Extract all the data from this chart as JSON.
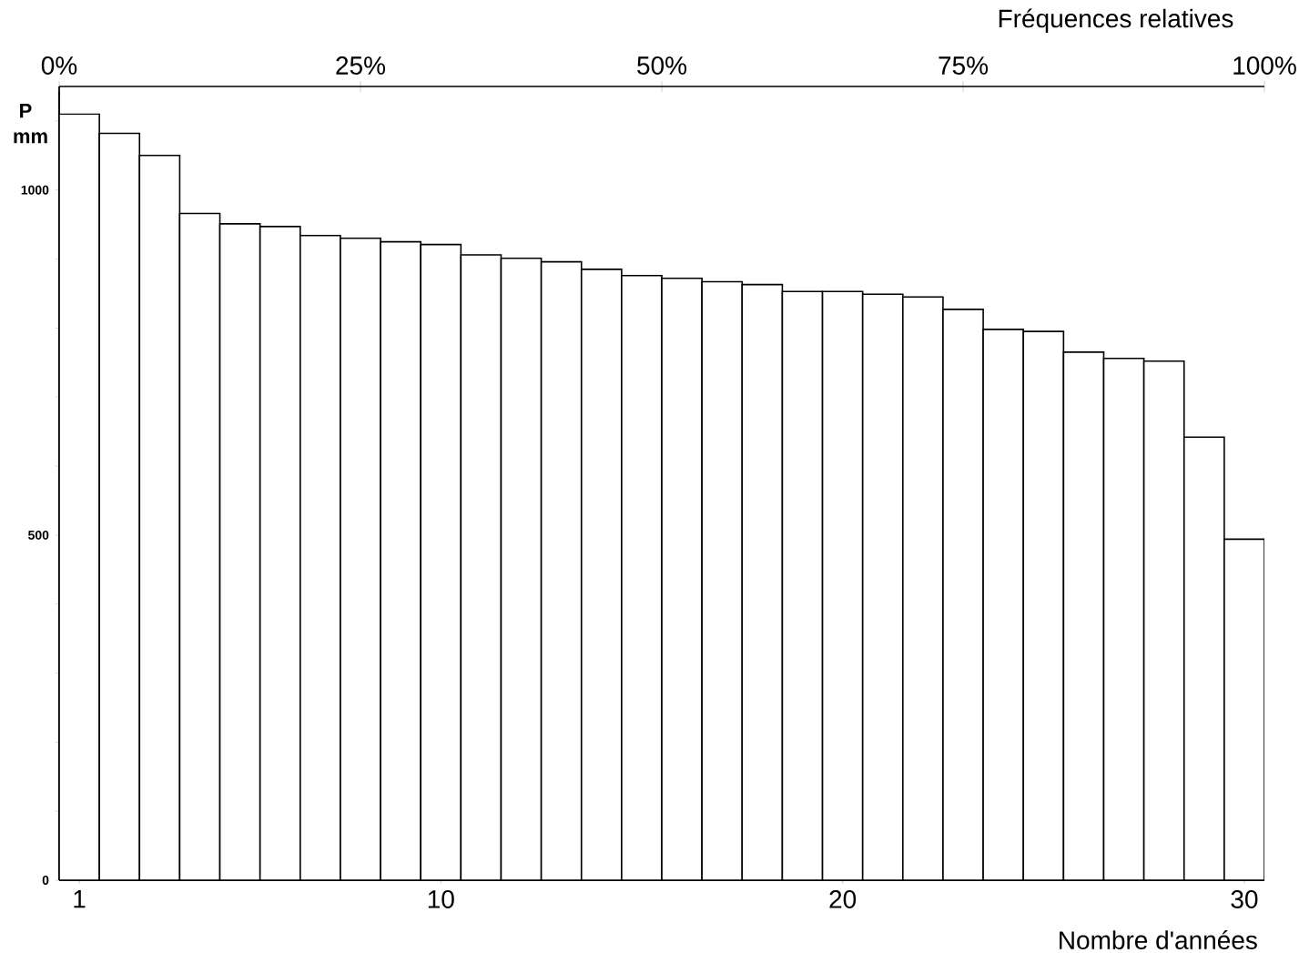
{
  "chart_data": {
    "type": "bar",
    "xlabel": "Nombre d'années",
    "ylabel": "P mm",
    "x2label": "Fréquences relatives",
    "color": "#ffffff",
    "categories": [
      "1",
      null,
      null,
      null,
      null,
      null,
      null,
      null,
      null,
      "10",
      null,
      null,
      null,
      null,
      null,
      null,
      null,
      null,
      null,
      "20",
      null,
      null,
      null,
      null,
      null,
      null,
      null,
      null,
      null,
      "30"
    ],
    "values": [
      1110,
      1082,
      1050,
      966,
      951,
      947,
      934,
      930,
      925,
      921,
      906,
      901,
      896,
      885,
      876,
      872,
      867,
      863,
      853,
      853,
      849,
      845,
      827,
      798,
      795,
      765,
      756,
      752,
      642,
      494
    ],
    "ylim": [
      0,
      1150
    ],
    "yticks": [
      0,
      {
        "value": 100,
        "label": null
      },
      {
        "value": 200,
        "label": null
      },
      {
        "value": 300,
        "label": null
      },
      {
        "value": 400,
        "label": null
      },
      500,
      {
        "value": 600,
        "label": null
      },
      {
        "value": 700,
        "label": null
      },
      {
        "value": 800,
        "label": null
      },
      {
        "value": 900,
        "label": null
      },
      1000,
      {
        "value": 1100,
        "label": null
      }
    ],
    "x2lim": [
      0,
      100
    ],
    "x2ticks": [
      {
        "value": 0,
        "label": "0%"
      },
      {
        "value": 25,
        "label": "25%"
      },
      {
        "value": 50,
        "label": "50%"
      },
      {
        "value": 75,
        "label": "75%"
      },
      {
        "value": 100,
        "label": "100%"
      }
    ]
  }
}
